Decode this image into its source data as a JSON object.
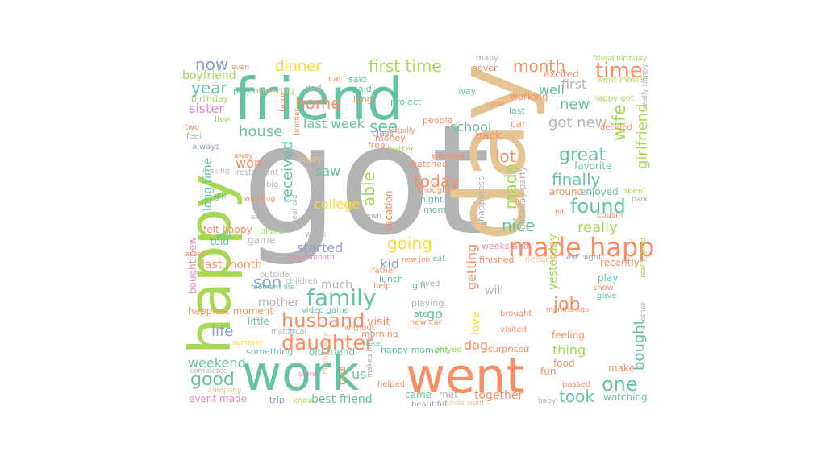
{
  "palette": {
    "teal": "#66c2a5",
    "orange": "#fc8d62",
    "blue": "#8da0cb",
    "pink": "#e78ac3",
    "green": "#a6d854",
    "yellow": "#ffd92f",
    "tan": "#e5c494",
    "gray": "#b3b3b3"
  },
  "words": [
    {
      "text": "got",
      "color": "gray"
    },
    {
      "text": "day",
      "color": "tan"
    },
    {
      "text": "friend",
      "color": "teal"
    },
    {
      "text": "went",
      "color": "orange"
    },
    {
      "text": "work",
      "color": "teal"
    },
    {
      "text": "happy",
      "color": "green"
    },
    {
      "text": "made happy",
      "color": "orange"
    },
    {
      "text": "found",
      "color": "teal"
    },
    {
      "text": "family",
      "color": "teal"
    },
    {
      "text": "daughter",
      "color": "orange"
    },
    {
      "text": "husband",
      "color": "orange"
    },
    {
      "text": "first time",
      "color": "green"
    },
    {
      "text": "month",
      "color": "orange"
    },
    {
      "text": "time",
      "color": "orange"
    },
    {
      "text": "dinner",
      "color": "yellow"
    },
    {
      "text": "now",
      "color": "blue"
    },
    {
      "text": "year",
      "color": "teal"
    },
    {
      "text": "home",
      "color": "orange"
    },
    {
      "text": "sister",
      "color": "pink"
    },
    {
      "text": "house",
      "color": "teal"
    },
    {
      "text": "last week",
      "color": "teal"
    },
    {
      "text": "see",
      "color": "teal"
    },
    {
      "text": "school",
      "color": "teal"
    },
    {
      "text": "got new",
      "color": "gray"
    },
    {
      "text": "great",
      "color": "teal"
    },
    {
      "text": "finally",
      "color": "teal"
    },
    {
      "text": "today",
      "color": "orange"
    },
    {
      "text": "made",
      "color": "green"
    },
    {
      "text": "lot",
      "color": "orange"
    },
    {
      "text": "nice",
      "color": "teal"
    },
    {
      "text": "going",
      "color": "yellow"
    },
    {
      "text": "really",
      "color": "green"
    },
    {
      "text": "job",
      "color": "orange"
    },
    {
      "text": "one",
      "color": "teal"
    },
    {
      "text": "bought",
      "color": "teal"
    },
    {
      "text": "took",
      "color": "teal"
    },
    {
      "text": "good",
      "color": "teal"
    },
    {
      "text": "weekend",
      "color": "teal"
    },
    {
      "text": "life",
      "color": "blue"
    },
    {
      "text": "son",
      "color": "blue"
    },
    {
      "text": "mother",
      "color": "gray"
    },
    {
      "text": "wife",
      "color": "green"
    },
    {
      "text": "girlfriend",
      "color": "green"
    },
    {
      "text": "boyfriend",
      "color": "green"
    },
    {
      "text": "received",
      "color": "teal"
    },
    {
      "text": "able",
      "color": "green"
    },
    {
      "text": "college",
      "color": "yellow"
    },
    {
      "text": "saw",
      "color": "teal"
    },
    {
      "text": "won",
      "color": "orange"
    },
    {
      "text": "started",
      "color": "blue"
    },
    {
      "text": "last month",
      "color": "orange"
    },
    {
      "text": "long time",
      "color": "teal"
    },
    {
      "text": "game",
      "color": "gray"
    },
    {
      "text": "happiest moment",
      "color": "orange"
    },
    {
      "text": "event made",
      "color": "pink"
    },
    {
      "text": "best friend",
      "color": "teal"
    },
    {
      "text": "together",
      "color": "orange"
    },
    {
      "text": "thing",
      "color": "green"
    },
    {
      "text": "feeling",
      "color": "orange"
    },
    {
      "text": "watching",
      "color": "teal"
    },
    {
      "text": "kid",
      "color": "blue"
    },
    {
      "text": "much",
      "color": "gray"
    },
    {
      "text": "dog",
      "color": "orange"
    },
    {
      "text": "will",
      "color": "gray"
    },
    {
      "text": "go",
      "color": "teal"
    },
    {
      "text": "us",
      "color": "teal"
    },
    {
      "text": "yesterday",
      "color": "green"
    },
    {
      "text": "getting",
      "color": "orange"
    },
    {
      "text": "love",
      "color": "yellow"
    },
    {
      "text": "new",
      "color": "teal"
    },
    {
      "text": "first",
      "color": "gray"
    },
    {
      "text": "well",
      "color": "teal"
    },
    {
      "text": "back",
      "color": "orange"
    },
    {
      "text": "told",
      "color": "teal"
    },
    {
      "text": "felt happy",
      "color": "orange"
    },
    {
      "text": "bought new",
      "color": "pink"
    },
    {
      "text": "little",
      "color": "teal"
    },
    {
      "text": "visit",
      "color": "orange"
    },
    {
      "text": "old friend",
      "color": "teal"
    },
    {
      "text": "happy moment",
      "color": "teal"
    },
    {
      "text": "came",
      "color": "teal"
    },
    {
      "text": "met",
      "color": "gray"
    },
    {
      "text": "something",
      "color": "teal"
    },
    {
      "text": "fun",
      "color": "orange"
    },
    {
      "text": "food",
      "color": "orange"
    },
    {
      "text": "make",
      "color": "orange"
    },
    {
      "text": "recently",
      "color": "orange"
    },
    {
      "text": "play",
      "color": "teal"
    },
    {
      "text": "favorite",
      "color": "teal"
    },
    {
      "text": "around",
      "color": "orange"
    },
    {
      "text": "enjoyed",
      "color": "teal"
    },
    {
      "text": "excited",
      "color": "orange"
    },
    {
      "text": "working",
      "color": "orange"
    },
    {
      "text": "project",
      "color": "teal"
    },
    {
      "text": "people",
      "color": "orange"
    },
    {
      "text": "car",
      "color": "orange"
    },
    {
      "text": "vacation",
      "color": "orange"
    },
    {
      "text": "mom",
      "color": "teal"
    },
    {
      "text": "night",
      "color": "teal"
    },
    {
      "text": "watched",
      "color": "orange"
    },
    {
      "text": "wanted",
      "color": "orange"
    },
    {
      "text": "better",
      "color": "green"
    },
    {
      "text": "money",
      "color": "orange"
    },
    {
      "text": "live",
      "color": "green"
    },
    {
      "text": "birthday",
      "color": "green"
    },
    {
      "text": "parent",
      "color": "teal"
    },
    {
      "text": "amazing",
      "color": "tan"
    },
    {
      "text": "hour",
      "color": "orange"
    },
    {
      "text": "dad",
      "color": "gray"
    },
    {
      "text": "said",
      "color": "teal"
    },
    {
      "text": "paid",
      "color": "teal"
    },
    {
      "text": "long",
      "color": "orange"
    },
    {
      "text": "cat",
      "color": "orange"
    },
    {
      "text": "never",
      "color": "orange"
    },
    {
      "text": "many",
      "color": "gray"
    },
    {
      "text": "way",
      "color": "teal"
    },
    {
      "text": "last",
      "color": "teal"
    },
    {
      "text": "come",
      "color": "orange"
    },
    {
      "text": "class",
      "color": "blue"
    },
    {
      "text": "free",
      "color": "orange"
    },
    {
      "text": "enjoy",
      "color": "tan"
    },
    {
      "text": "thought",
      "color": "orange"
    },
    {
      "text": "happiness",
      "color": "gray"
    },
    {
      "text": "birthday party",
      "color": "gray"
    },
    {
      "text": "went movie",
      "color": "green"
    },
    {
      "text": "happy got",
      "color": "green"
    },
    {
      "text": "friend birthday",
      "color": "green"
    },
    {
      "text": "decided",
      "color": "orange"
    },
    {
      "text": "spent",
      "color": "green"
    },
    {
      "text": "cousin",
      "color": "orange"
    },
    {
      "text": "hit",
      "color": "orange"
    },
    {
      "text": "weeks ago",
      "color": "pink"
    },
    {
      "text": "finished",
      "color": "orange"
    },
    {
      "text": "needed",
      "color": "tan"
    },
    {
      "text": "last night",
      "color": "blue"
    },
    {
      "text": "eat",
      "color": "teal"
    },
    {
      "text": "new job",
      "color": "orange"
    },
    {
      "text": "lunch",
      "color": "teal"
    },
    {
      "text": "father",
      "color": "orange"
    },
    {
      "text": "help",
      "color": "orange"
    },
    {
      "text": "gift",
      "color": "teal"
    },
    {
      "text": "loved",
      "color": "gray"
    },
    {
      "text": "playing",
      "color": "gray"
    },
    {
      "text": "ate",
      "color": "teal"
    },
    {
      "text": "new car",
      "color": "orange"
    },
    {
      "text": "brought",
      "color": "orange"
    },
    {
      "text": "visited",
      "color": "orange"
    },
    {
      "text": "morning",
      "color": "orange"
    },
    {
      "text": "movie went",
      "color": "tan"
    },
    {
      "text": "surprised",
      "color": "orange"
    },
    {
      "text": "played",
      "color": "green"
    },
    {
      "text": "ticket",
      "color": "teal"
    },
    {
      "text": "without",
      "color": "orange"
    },
    {
      "text": "beautiful",
      "color": "blue"
    },
    {
      "text": "helped",
      "color": "orange"
    },
    {
      "text": "makes happy",
      "color": "gray"
    },
    {
      "text": "take",
      "color": "orange"
    },
    {
      "text": "store",
      "color": "pink"
    },
    {
      "text": "mother day",
      "color": "tan"
    },
    {
      "text": "trip",
      "color": "blue"
    },
    {
      "text": "know",
      "color": "green"
    },
    {
      "text": "company",
      "color": "tan"
    },
    {
      "text": "completed",
      "color": "gray"
    },
    {
      "text": "local",
      "color": "gray"
    },
    {
      "text": "match",
      "color": "gray"
    },
    {
      "text": "summer",
      "color": "yellow"
    },
    {
      "text": "video game",
      "color": "teal"
    },
    {
      "text": "children",
      "color": "gray"
    },
    {
      "text": "outside",
      "color": "gray"
    },
    {
      "text": "moment life",
      "color": "teal"
    },
    {
      "text": "asked",
      "color": "orange"
    },
    {
      "text": "walk",
      "color": "teal"
    },
    {
      "text": "place",
      "color": "green"
    },
    {
      "text": "small",
      "color": "gray"
    },
    {
      "text": "year old",
      "color": "gray"
    },
    {
      "text": "past month",
      "color": "pink"
    },
    {
      "text": "week",
      "color": "gray"
    },
    {
      "text": "town",
      "color": "gray"
    },
    {
      "text": "wedding",
      "color": "orange"
    },
    {
      "text": "girl",
      "color": "teal"
    },
    {
      "text": "big",
      "color": "gray"
    },
    {
      "text": "restaurant",
      "color": "gray"
    },
    {
      "text": "making",
      "color": "gray"
    },
    {
      "text": "away",
      "color": "orange"
    },
    {
      "text": "always",
      "color": "blue"
    },
    {
      "text": "feel",
      "color": "gray"
    },
    {
      "text": "two",
      "color": "orange"
    },
    {
      "text": "brother",
      "color": "orange"
    },
    {
      "text": "actually",
      "color": "orange"
    },
    {
      "text": "even",
      "color": "orange"
    },
    {
      "text": "months ago",
      "color": "orange"
    },
    {
      "text": "show",
      "color": "orange"
    },
    {
      "text": "gave",
      "color": "teal"
    },
    {
      "text": "another",
      "color": "gray"
    },
    {
      "text": "baby",
      "color": "gray"
    },
    {
      "text": "passed",
      "color": "orange"
    },
    {
      "text": "really happy",
      "color": "gray"
    },
    {
      "text": "really good",
      "color": "green"
    },
    {
      "text": "park",
      "color": "gray"
    }
  ]
}
